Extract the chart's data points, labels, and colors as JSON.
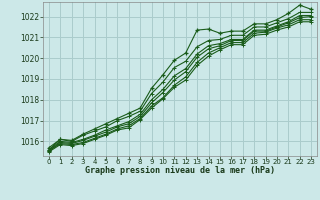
{
  "title": "Graphe pression niveau de la mer (hPa)",
  "bg_color": "#cce8e8",
  "grid_color": "#aacccc",
  "line_color": "#1a5c1a",
  "xlim": [
    -0.5,
    23.5
  ],
  "ylim": [
    1015.3,
    1022.7
  ],
  "yticks": [
    1016,
    1017,
    1018,
    1019,
    1020,
    1021,
    1022
  ],
  "xticks": [
    0,
    1,
    2,
    3,
    4,
    5,
    6,
    7,
    8,
    9,
    10,
    11,
    12,
    13,
    14,
    15,
    16,
    17,
    18,
    19,
    20,
    21,
    22,
    23
  ],
  "series": [
    [
      1015.6,
      1016.1,
      1016.0,
      1016.3,
      1016.5,
      1016.7,
      1017.0,
      1017.2,
      1017.45,
      1018.3,
      1018.85,
      1019.55,
      1019.85,
      1020.55,
      1020.85,
      1020.9,
      1021.1,
      1021.1,
      1021.5,
      1021.5,
      1021.7,
      1021.9,
      1022.2,
      1022.2
    ],
    [
      1015.6,
      1016.0,
      1015.95,
      1016.1,
      1016.3,
      1016.55,
      1016.75,
      1016.95,
      1017.3,
      1018.0,
      1018.5,
      1019.15,
      1019.5,
      1020.2,
      1020.6,
      1020.7,
      1020.9,
      1020.9,
      1021.35,
      1021.35,
      1021.55,
      1021.75,
      1022.05,
      1022.05
    ],
    [
      1015.55,
      1015.95,
      1015.9,
      1016.05,
      1016.25,
      1016.45,
      1016.7,
      1016.85,
      1017.2,
      1017.85,
      1018.35,
      1018.95,
      1019.35,
      1020.05,
      1020.45,
      1020.6,
      1020.85,
      1020.85,
      1021.3,
      1021.3,
      1021.5,
      1021.7,
      1021.95,
      1022.0
    ],
    [
      1015.55,
      1015.9,
      1015.85,
      1015.95,
      1016.15,
      1016.35,
      1016.6,
      1016.75,
      1017.1,
      1017.7,
      1018.1,
      1018.7,
      1019.1,
      1019.8,
      1020.25,
      1020.5,
      1020.75,
      1020.75,
      1021.2,
      1021.25,
      1021.45,
      1021.6,
      1021.85,
      1021.85
    ],
    [
      1015.5,
      1015.85,
      1015.8,
      1015.9,
      1016.1,
      1016.3,
      1016.55,
      1016.65,
      1017.05,
      1017.6,
      1018.05,
      1018.6,
      1018.95,
      1019.65,
      1020.1,
      1020.4,
      1020.65,
      1020.65,
      1021.1,
      1021.15,
      1021.35,
      1021.5,
      1021.75,
      1021.75
    ]
  ],
  "series_top": [
    1015.7,
    1016.1,
    1016.05,
    1016.35,
    1016.6,
    1016.85,
    1017.1,
    1017.35,
    1017.6,
    1018.55,
    1019.2,
    1019.9,
    1020.25,
    1021.35,
    1021.4,
    1021.2,
    1021.3,
    1021.3,
    1021.65,
    1021.65,
    1021.85,
    1022.15,
    1022.55,
    1022.35
  ]
}
